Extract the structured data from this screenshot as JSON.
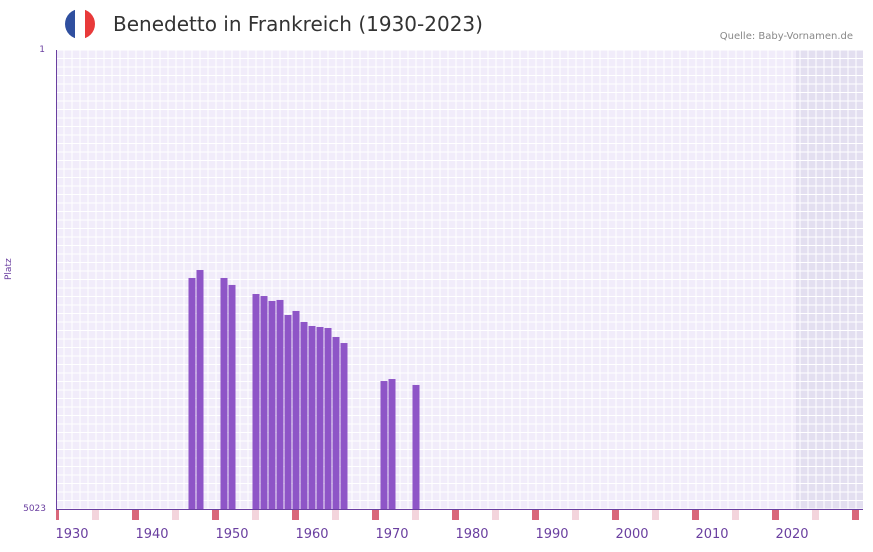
{
  "header": {
    "title": "Benedetto in Frankreich (1930-2023)",
    "source": "Quelle: Baby-Vornamen.de",
    "flag_colors": [
      "#2f4f9f",
      "#ffffff",
      "#e83a3a"
    ]
  },
  "axes": {
    "ylabel": "Platz",
    "ytick_top": "1",
    "ytick_bottom": "5023"
  },
  "colors": {
    "bar": "#8e55c7",
    "grid_bg": "#f1ecfa",
    "shade_bg": "#e3dff0",
    "axis": "#6a3fa0",
    "decade_marker": "#d9677a",
    "minor_marker": "#f3d4dc"
  },
  "chart_data": {
    "type": "bar",
    "title": "Benedetto in Frankreich (1930-2023)",
    "xlabel": "",
    "ylabel": "Platz",
    "ylim": [
      5023,
      1
    ],
    "y_inverted": true,
    "xlim": [
      1930,
      2030
    ],
    "grid": true,
    "legend": null,
    "x_ticks": [
      1930,
      1940,
      1950,
      1960,
      1970,
      1980,
      1990,
      2000,
      2010,
      2020
    ],
    "categories": [
      1947,
      1948,
      1951,
      1952,
      1955,
      1956,
      1957,
      1958,
      1959,
      1960,
      1961,
      1962,
      1963,
      1964,
      1965,
      1966,
      1971,
      1972,
      1975
    ],
    "values": [
      2490,
      2403,
      2490,
      2566,
      2665,
      2687,
      2741,
      2730,
      2894,
      2850,
      2970,
      3014,
      3025,
      3036,
      3134,
      3200,
      3615,
      3593,
      3658
    ],
    "shaded_region": [
      2023,
      2030
    ],
    "annotations": [
      "Quelle: Baby-Vornamen.de"
    ]
  }
}
